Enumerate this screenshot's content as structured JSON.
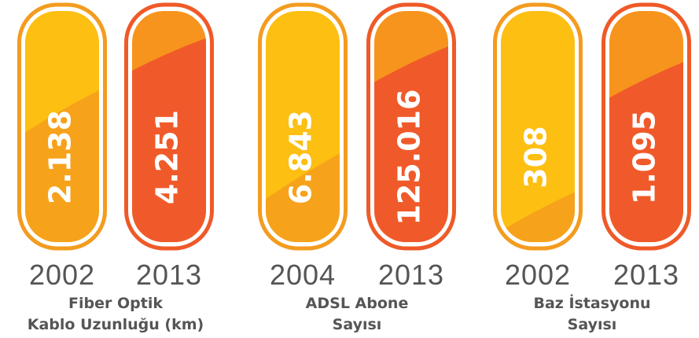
{
  "groups": [
    {
      "items": [
        {
          "value": "2.138",
          "year": "2002"
        },
        {
          "value": "4.251",
          "year": "2013"
        }
      ],
      "label": [
        "Fiber Optik",
        "Kablo Uzunluğu (km)"
      ]
    },
    {
      "items": [
        {
          "value": "6.843",
          "year": "2004"
        },
        {
          "value": "125.016",
          "year": "2013"
        }
      ],
      "label": [
        "ADSL Abone",
        "Sayısı"
      ]
    },
    {
      "items": [
        {
          "value": "308",
          "year": "2002"
        },
        {
          "value": "1.095",
          "year": "2013"
        }
      ],
      "label": [
        "Baz İstasyonu",
        "Sayısı"
      ]
    }
  ]
}
